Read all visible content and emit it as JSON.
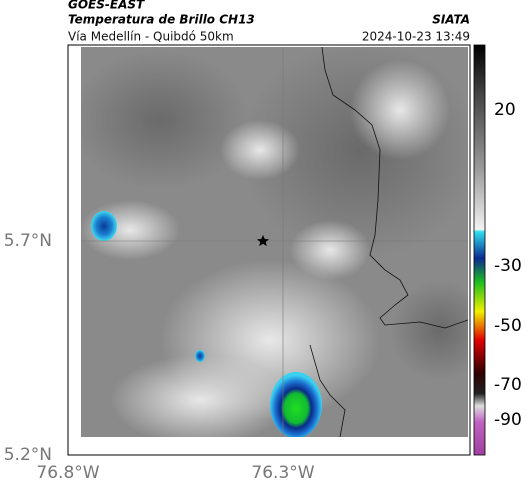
{
  "header": {
    "satellite": "GOES-EAST",
    "product": "Temperatura de Brillo CH13",
    "region": "Vía Medellín - Quibdó 50km",
    "source": "SIATA",
    "timestamp": "2024-10-23 13:49"
  },
  "map": {
    "lat_labels": [
      "5.7°N",
      "5.2°N"
    ],
    "lon_labels": [
      "76.8°W",
      "76.3°W"
    ]
  },
  "colorbar": {
    "labels": [
      "20",
      "-30",
      "-50",
      "-70",
      "-90"
    ]
  }
}
